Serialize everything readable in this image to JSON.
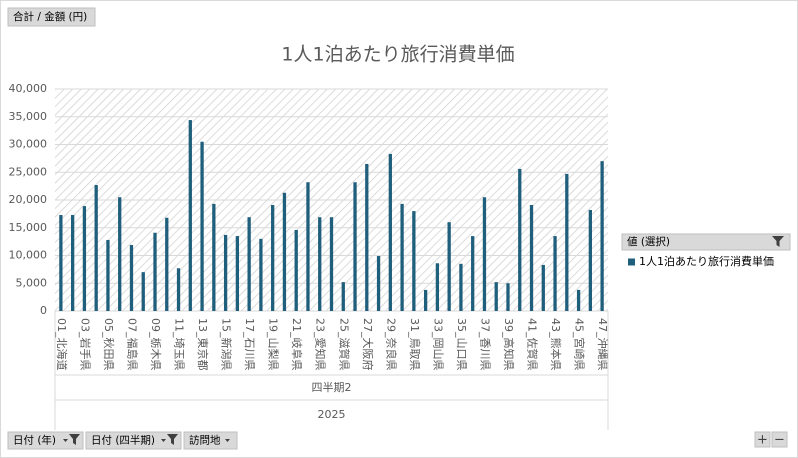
{
  "chart_data": {
    "type": "bar",
    "title": "1人1泊あたり旅行消費単価",
    "field_button": "合計 / 金額 (円)",
    "categories": [
      "01_北海道",
      null,
      "03_岩手県",
      null,
      "05_秋田県",
      null,
      "07_福島県",
      null,
      "09_栃木県",
      null,
      "11_埼玉県",
      null,
      "13_東京都",
      null,
      "15_新潟県",
      null,
      "17_石川県",
      null,
      "19_山梨県",
      null,
      "21_岐阜県",
      null,
      "23_愛知県",
      null,
      "25_滋賀県",
      null,
      "27_大阪府",
      null,
      "29_奈良県",
      null,
      "31_鳥取県",
      null,
      "33_岡山県",
      null,
      "35_山口県",
      null,
      "37_香川県",
      null,
      "39_高知県",
      null,
      "41_佐賀県",
      null,
      "43_熊本県",
      null,
      "45_宮崎県",
      null,
      "47_沖縄県"
    ],
    "group_labels": [
      "四半期2",
      "2025"
    ],
    "series": [
      {
        "name": "1人1泊あたり旅行消費単価",
        "color": "#1f5f7c",
        "values": [
          17300,
          17300,
          18900,
          22700,
          12800,
          20500,
          11900,
          7000,
          14100,
          16800,
          7700,
          34400,
          30500,
          19300,
          13700,
          13500,
          16900,
          13000,
          19100,
          21300,
          14600,
          23200,
          16900,
          16900,
          5200,
          23200,
          26500,
          9900,
          28300,
          19300,
          18000,
          3800,
          8600,
          16000,
          8500,
          13500,
          20500,
          5200,
          5000,
          25600,
          19100,
          8300,
          13500,
          24700,
          3800,
          18200,
          27000
        ]
      }
    ],
    "ylim": [
      0,
      40000
    ],
    "yticks": [
      0,
      {
        "value": 5000,
        "label": "5,000"
      },
      {
        "value": 10000,
        "label": "10,000"
      },
      {
        "value": 15000,
        "label": "15,000"
      },
      {
        "value": 20000,
        "label": "20,000"
      },
      {
        "value": 25000,
        "label": "25,000"
      },
      {
        "value": 30000,
        "label": "30,000"
      },
      {
        "value": 35000,
        "label": "35,000"
      },
      {
        "value": 40000,
        "label": "40,000"
      }
    ],
    "legend_title": "値 (選択)",
    "legend": "right",
    "grid": true
  },
  "ui": {
    "filters": [
      "日付 (年)",
      "日付 (四半期)",
      "訪問地"
    ],
    "zoom": [
      "+",
      "−"
    ]
  }
}
